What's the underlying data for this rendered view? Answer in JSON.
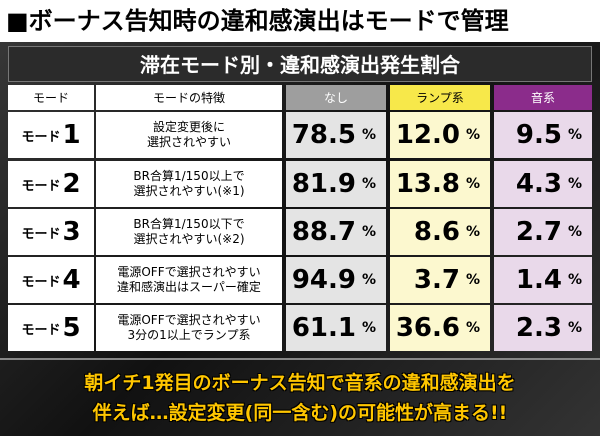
{
  "header": {
    "title": "■ボーナス告知時の違和感演出はモードで管理"
  },
  "table": {
    "title": "滞在モード別・違和感演出発生割合",
    "columns": [
      "モード",
      "モードの特徴",
      "なし",
      "ランプ系",
      "音系"
    ],
    "rows": [
      {
        "mode": "モード",
        "mode_number": "1",
        "feature": [
          "設定変更後に",
          "選択されやすい"
        ],
        "cells": [
          {
            "value": "78.5",
            "unit": "%"
          },
          {
            "value": "12.0",
            "unit": "%"
          },
          {
            "value": "9.5",
            "unit": "%"
          }
        ]
      },
      {
        "mode": "モード",
        "mode_number": "2",
        "feature": [
          "BR合算1/150以上で",
          "選択されやすい(※1)"
        ],
        "cells": [
          {
            "value": "81.9",
            "unit": "%"
          },
          {
            "value": "13.8",
            "unit": "%"
          },
          {
            "value": "4.3",
            "unit": "%"
          }
        ]
      },
      {
        "mode": "モード",
        "mode_number": "3",
        "feature": [
          "BR合算1/150以下で",
          "選択されやすい(※2)"
        ],
        "cells": [
          {
            "value": "88.7",
            "unit": "%"
          },
          {
            "value": "8.6",
            "unit": "%"
          },
          {
            "value": "2.7",
            "unit": "%"
          }
        ]
      },
      {
        "mode": "モード",
        "mode_number": "4",
        "feature": [
          "電源OFFで選択されやすい",
          "違和感演出はスーパー確定"
        ],
        "cells": [
          {
            "value": "94.9",
            "unit": "%"
          },
          {
            "value": "3.7",
            "unit": "%"
          },
          {
            "value": "1.4",
            "unit": "%"
          }
        ]
      },
      {
        "mode": "モード",
        "mode_number": "5",
        "feature": [
          "電源OFFで選択されやすい",
          "3分の1以上でランプ系"
        ],
        "cells": [
          {
            "value": "61.1",
            "unit": "%"
          },
          {
            "value": "36.6",
            "unit": "%"
          },
          {
            "value": "2.3",
            "unit": "%"
          }
        ]
      }
    ]
  },
  "footer": {
    "lines": [
      "朝イチ1発目のボーナス告知で音系の違和感演出を",
      "伴えば…設定変更(同一含む)の可能性が高まる!!"
    ]
  }
}
